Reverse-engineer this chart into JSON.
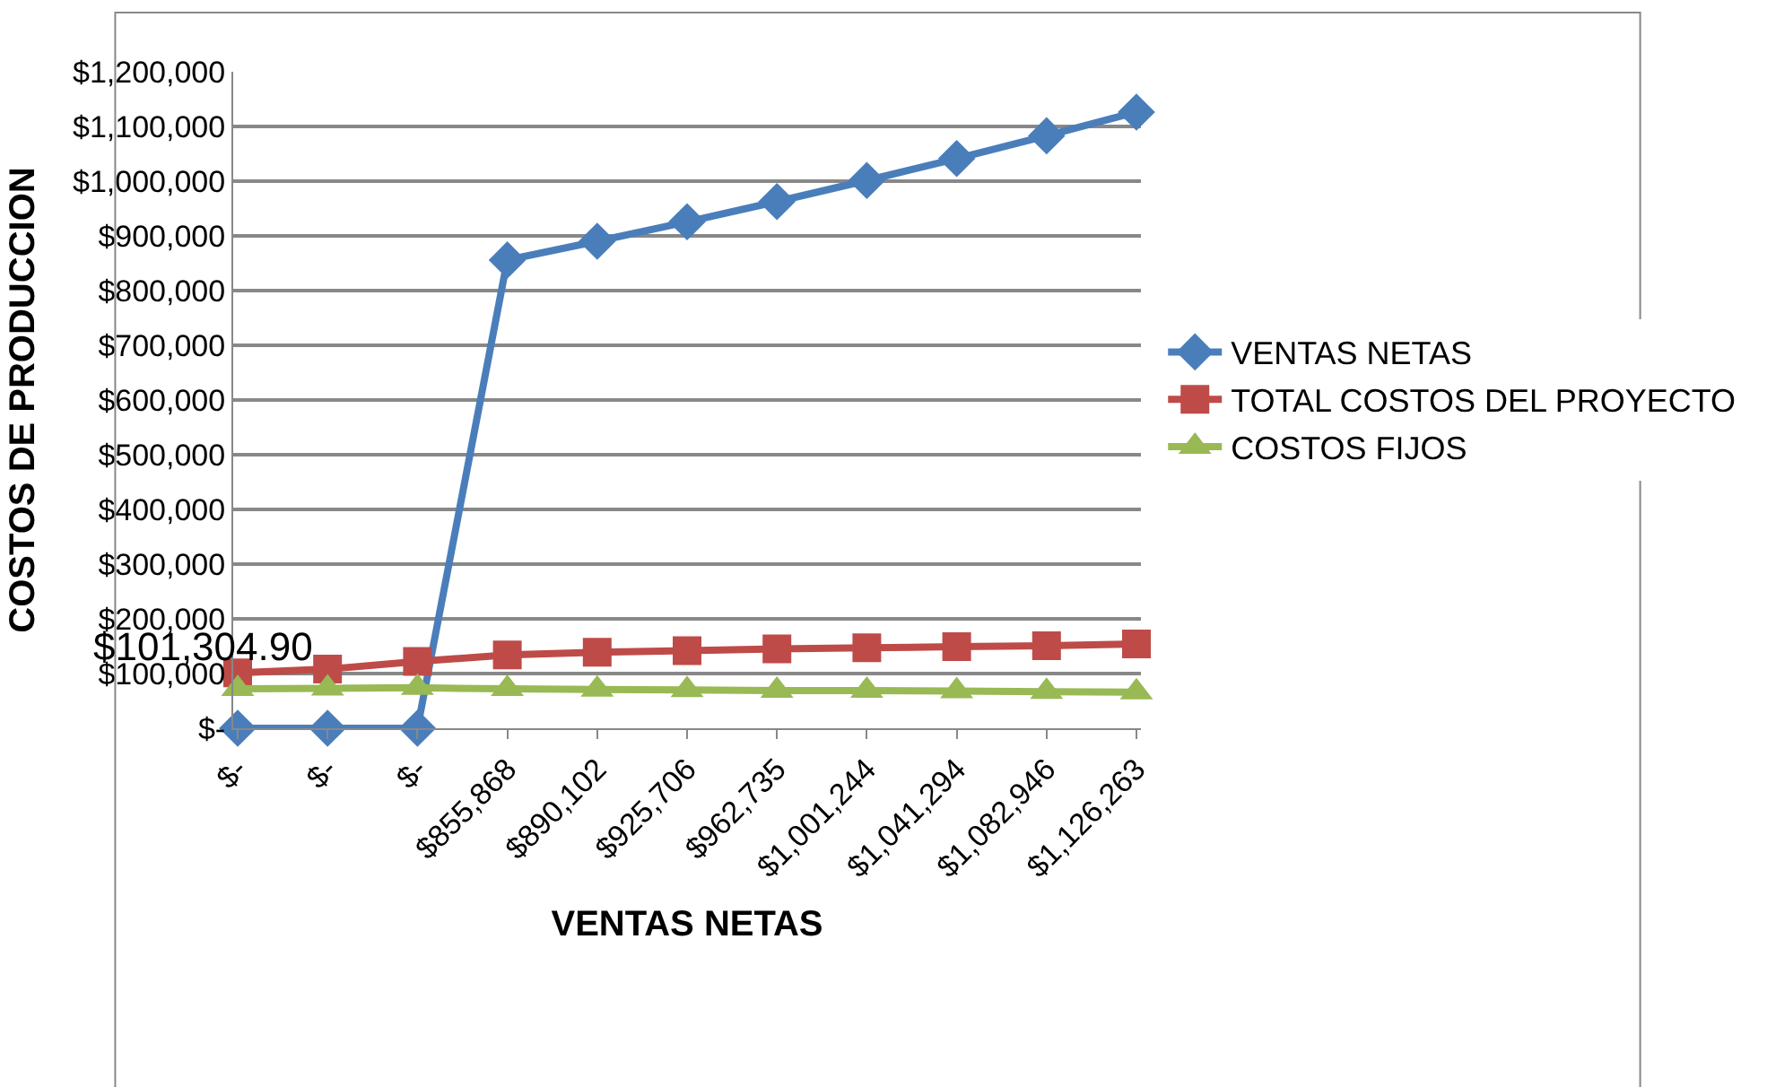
{
  "chart_data": {
    "type": "line",
    "xlabel": "VENTAS NETAS",
    "ylabel": "COSTOS DE PRODUCCION",
    "categories": [
      "$-",
      "$-",
      "$-",
      "$855,868",
      "$890,102",
      "$925,706",
      "$962,735",
      "$1,001,244",
      "$1,041,294",
      "$1,082,946",
      "$1,126,263"
    ],
    "series": [
      {
        "name": "VENTAS NETAS",
        "color": "#4a7ebb",
        "marker": "diamond",
        "values": [
          0,
          0,
          0,
          855868,
          890102,
          925706,
          962735,
          1001244,
          1041294,
          1082946,
          1126263
        ]
      },
      {
        "name": "TOTAL COSTOS DEL PROYECTO",
        "color": "#be4b48",
        "marker": "square",
        "values": [
          101304.9,
          108000,
          122000,
          134000,
          139000,
          142000,
          145000,
          147000,
          149000,
          151000,
          154000
        ]
      },
      {
        "name": "COSTOS FIJOS",
        "color": "#98b954",
        "marker": "triangle",
        "values": [
          72000,
          73000,
          74000,
          72000,
          71000,
          70000,
          69000,
          69000,
          68000,
          67000,
          66000
        ]
      }
    ],
    "ylim": [
      0,
      1200000
    ],
    "yticks": [
      {
        "value": 0,
        "label": "$-"
      },
      {
        "value": 100000,
        "label": "$100,000"
      },
      {
        "value": 200000,
        "label": "$200,000"
      },
      {
        "value": 300000,
        "label": "$300,000"
      },
      {
        "value": 400000,
        "label": "$400,000"
      },
      {
        "value": 500000,
        "label": "$500,000"
      },
      {
        "value": 600000,
        "label": "$600,000"
      },
      {
        "value": 700000,
        "label": "$700,000"
      },
      {
        "value": 800000,
        "label": "$800,000"
      },
      {
        "value": 900000,
        "label": "$900,000"
      },
      {
        "value": 1000000,
        "label": "$1,000,000"
      },
      {
        "value": 1100000,
        "label": "$1,100,000"
      },
      {
        "value": 1200000,
        "label": "$1,200,000"
      }
    ],
    "grid": "y",
    "legend": "right",
    "line_style": "solid",
    "annotations": [
      "$101,304.90"
    ]
  }
}
